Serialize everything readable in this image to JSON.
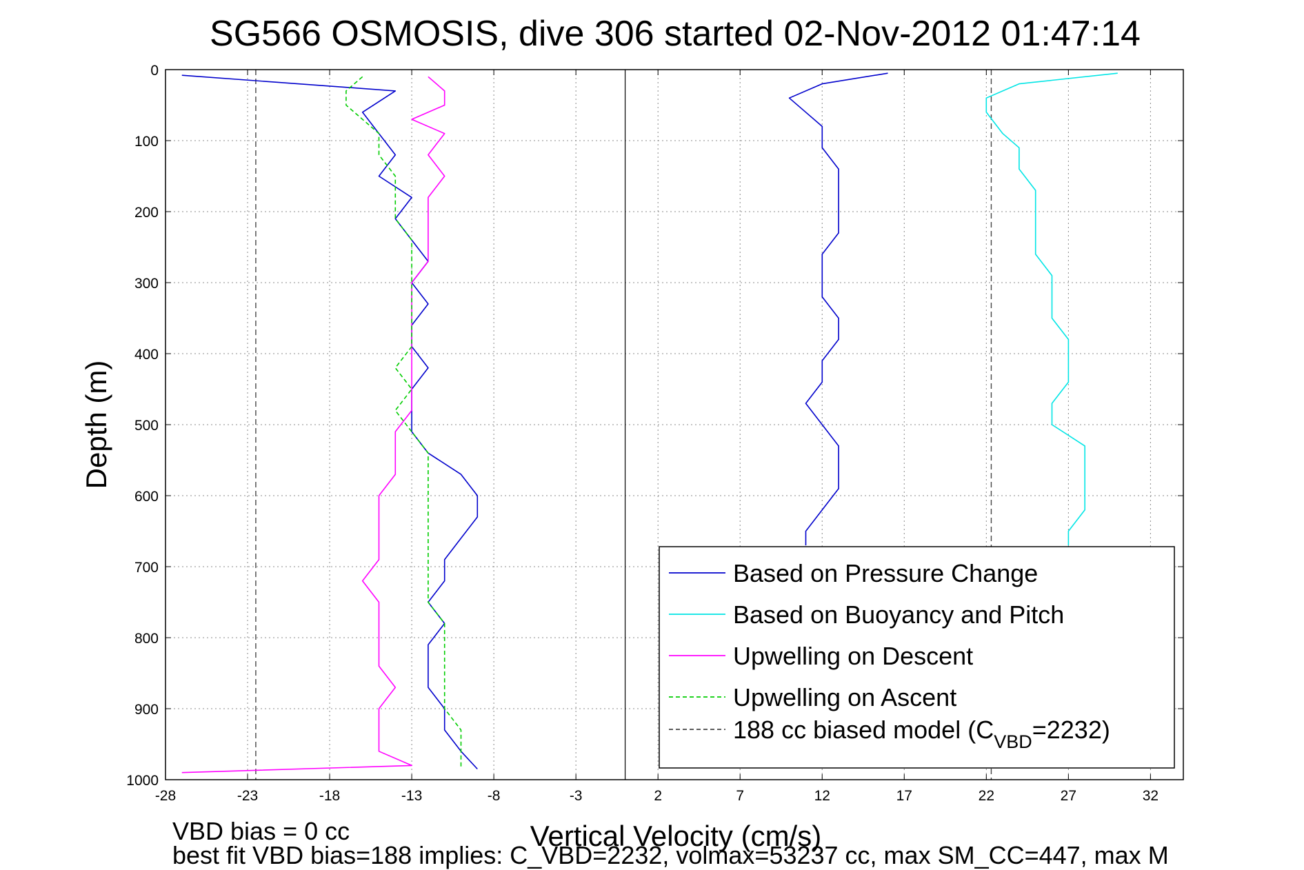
{
  "chart_data": {
    "type": "line",
    "title": "SG566 OSMOSIS, dive 306 started 02-Nov-2012 01:47:14",
    "xlabel": "Vertical Velocity (cm/s)",
    "ylabel": "Depth (m)",
    "xlim": [
      -28,
      34
    ],
    "ylim": [
      0,
      1000
    ],
    "y_reversed": true,
    "grid": true,
    "legend_position": "bottom-right",
    "x_ticks": [
      "-28",
      "-23",
      "-18",
      "-13",
      "-8",
      "-3",
      "2",
      "7",
      "12",
      "17",
      "22",
      "27",
      "32"
    ],
    "y_ticks": [
      "0",
      "100",
      "200",
      "300",
      "400",
      "500",
      "600",
      "700",
      "800",
      "900",
      "1000"
    ],
    "zero_line_x": 0,
    "series": [
      {
        "name": "Based on Pressure Change",
        "color": "#0000cc",
        "style": "solid",
        "descent": [
          [
            -27,
            8
          ],
          [
            -14,
            30
          ],
          [
            -16,
            60
          ],
          [
            -15,
            90
          ],
          [
            -14,
            120
          ],
          [
            -15,
            150
          ],
          [
            -13,
            180
          ],
          [
            -14,
            210
          ],
          [
            -13,
            240
          ],
          [
            -12,
            270
          ],
          [
            -13,
            300
          ],
          [
            -12,
            330
          ],
          [
            -13,
            360
          ],
          [
            -13,
            390
          ],
          [
            -12,
            420
          ],
          [
            -13,
            450
          ],
          [
            -13,
            480
          ],
          [
            -13,
            510
          ],
          [
            -12,
            540
          ],
          [
            -10,
            570
          ],
          [
            -9,
            600
          ],
          [
            -9,
            630
          ],
          [
            -10,
            660
          ],
          [
            -11,
            690
          ],
          [
            -11,
            720
          ],
          [
            -12,
            750
          ],
          [
            -11,
            780
          ],
          [
            -12,
            810
          ],
          [
            -12,
            840
          ],
          [
            -12,
            870
          ],
          [
            -11,
            900
          ],
          [
            -11,
            930
          ],
          [
            -10,
            960
          ],
          [
            -9,
            985
          ]
        ],
        "ascent": [
          [
            16,
            5
          ],
          [
            12,
            20
          ],
          [
            10,
            40
          ],
          [
            11,
            60
          ],
          [
            12,
            80
          ],
          [
            12,
            110
          ],
          [
            13,
            140
          ],
          [
            13,
            170
          ],
          [
            13,
            200
          ],
          [
            13,
            230
          ],
          [
            12,
            260
          ],
          [
            12,
            290
          ],
          [
            12,
            320
          ],
          [
            13,
            350
          ],
          [
            13,
            380
          ],
          [
            12,
            410
          ],
          [
            12,
            440
          ],
          [
            11,
            470
          ],
          [
            12,
            500
          ],
          [
            13,
            530
          ],
          [
            13,
            560
          ],
          [
            13,
            590
          ],
          [
            12,
            620
          ],
          [
            11,
            650
          ],
          [
            11,
            670
          ]
        ]
      },
      {
        "name": "Based on Buoyancy and Pitch",
        "color": "#00e5e5",
        "style": "solid",
        "descent": [
          [
            30,
            5
          ],
          [
            24,
            20
          ],
          [
            22,
            40
          ],
          [
            22,
            60
          ],
          [
            23,
            90
          ],
          [
            24,
            110
          ],
          [
            24,
            140
          ],
          [
            25,
            170
          ],
          [
            25,
            200
          ],
          [
            25,
            230
          ],
          [
            25,
            260
          ],
          [
            26,
            290
          ],
          [
            26,
            320
          ],
          [
            26,
            350
          ],
          [
            27,
            380
          ],
          [
            27,
            410
          ],
          [
            27,
            440
          ],
          [
            26,
            470
          ],
          [
            26,
            500
          ],
          [
            28,
            530
          ],
          [
            28,
            560
          ],
          [
            28,
            590
          ],
          [
            28,
            620
          ],
          [
            27,
            650
          ],
          [
            27,
            670
          ]
        ]
      },
      {
        "name": "Upwelling on Descent",
        "color": "#ff00ff",
        "style": "solid",
        "descent": [
          [
            -12,
            10
          ],
          [
            -11,
            30
          ],
          [
            -11,
            50
          ],
          [
            -13,
            70
          ],
          [
            -11,
            90
          ],
          [
            -12,
            120
          ],
          [
            -11,
            150
          ],
          [
            -12,
            180
          ],
          [
            -12,
            210
          ],
          [
            -12,
            240
          ],
          [
            -12,
            270
          ],
          [
            -13,
            300
          ],
          [
            -13,
            330
          ],
          [
            -13,
            360
          ],
          [
            -13,
            390
          ],
          [
            -13,
            420
          ],
          [
            -13,
            450
          ],
          [
            -13,
            480
          ],
          [
            -14,
            510
          ],
          [
            -14,
            540
          ],
          [
            -14,
            570
          ],
          [
            -15,
            600
          ],
          [
            -15,
            630
          ],
          [
            -15,
            660
          ],
          [
            -15,
            690
          ],
          [
            -16,
            720
          ],
          [
            -15,
            750
          ],
          [
            -15,
            780
          ],
          [
            -15,
            810
          ],
          [
            -15,
            840
          ],
          [
            -14,
            870
          ],
          [
            -15,
            900
          ],
          [
            -15,
            930
          ],
          [
            -15,
            960
          ],
          [
            -13,
            980
          ],
          [
            -27,
            990
          ]
        ]
      },
      {
        "name": "Upwelling on Ascent",
        "color": "#00cc00",
        "style": "dashed",
        "ascent": [
          [
            -16,
            10
          ],
          [
            -17,
            30
          ],
          [
            -17,
            50
          ],
          [
            -16,
            70
          ],
          [
            -15,
            90
          ],
          [
            -15,
            120
          ],
          [
            -14,
            150
          ],
          [
            -14,
            180
          ],
          [
            -14,
            210
          ],
          [
            -13,
            240
          ],
          [
            -13,
            270
          ],
          [
            -13,
            300
          ],
          [
            -13,
            330
          ],
          [
            -13,
            360
          ],
          [
            -13,
            390
          ],
          [
            -14,
            420
          ],
          [
            -13,
            450
          ],
          [
            -14,
            480
          ],
          [
            -13,
            510
          ],
          [
            -12,
            540
          ],
          [
            -12,
            570
          ],
          [
            -12,
            600
          ],
          [
            -12,
            630
          ],
          [
            -12,
            660
          ],
          [
            -12,
            690
          ],
          [
            -12,
            720
          ],
          [
            -12,
            750
          ],
          [
            -11,
            780
          ],
          [
            -11,
            810
          ],
          [
            -11,
            840
          ],
          [
            -11,
            870
          ],
          [
            -11,
            900
          ],
          [
            -10,
            930
          ],
          [
            -10,
            960
          ],
          [
            -10,
            985
          ]
        ]
      },
      {
        "name": "188 cc biased model (C",
        "name_sub": "VBD",
        "name_suffix": "=2232)",
        "color": "#444444",
        "style": "dashed",
        "model_lines_x": [
          -22.5,
          22.3
        ]
      }
    ]
  },
  "footer": {
    "line1": "VBD bias = 0 cc",
    "line2": "best fit VBD bias=188 implies: C_VBD=2232, volmax=53237 cc, max SM_CC=447, max M"
  }
}
